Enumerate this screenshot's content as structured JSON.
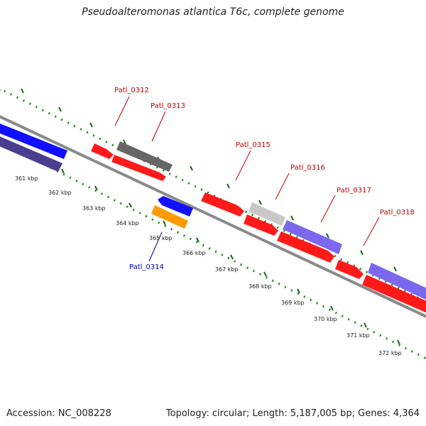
{
  "title": "Pseudoalteromonas atlantica T6c, complete genome",
  "footer": {
    "accession": "Accession: NC_008228",
    "summary": "Topology: circular; Length: 5,187,005 bp; Genes: 4,364"
  },
  "colors": {
    "backbone": "#808080",
    "dotted_track": "#1a8a1a",
    "label_plus": "#c00000",
    "label_minus": "#0000aa",
    "red": "#ff0000",
    "blue": "#0000ff",
    "indigo": "#4a3f8f",
    "lavender": "#7b68ee",
    "darkgray": "#666666",
    "lightgray": "#c8c8c8",
    "orange": "#ff9900"
  },
  "ticks": [
    {
      "label": "361 kbp"
    },
    {
      "label": "362 kbp"
    },
    {
      "label": "363 kbp"
    },
    {
      "label": "364 kbp"
    },
    {
      "label": "365 kbp"
    },
    {
      "label": "366 kbp"
    },
    {
      "label": "367 kbp"
    },
    {
      "label": "368 kbp"
    },
    {
      "label": "369 kbp"
    },
    {
      "label": "370 kbp"
    },
    {
      "label": "371 kbp"
    },
    {
      "label": "372 kbp"
    }
  ],
  "gene_labels": [
    {
      "text": "Patl_0312",
      "strand": "plus"
    },
    {
      "text": "Patl_0313",
      "strand": "plus"
    },
    {
      "text": "Patl_0315",
      "strand": "plus"
    },
    {
      "text": "Patl_0316",
      "strand": "plus"
    },
    {
      "text": "Patl_0317",
      "strand": "plus"
    },
    {
      "text": "Patl_0318",
      "strand": "plus"
    },
    {
      "text": "Patl_0314",
      "strand": "minus"
    }
  ]
}
